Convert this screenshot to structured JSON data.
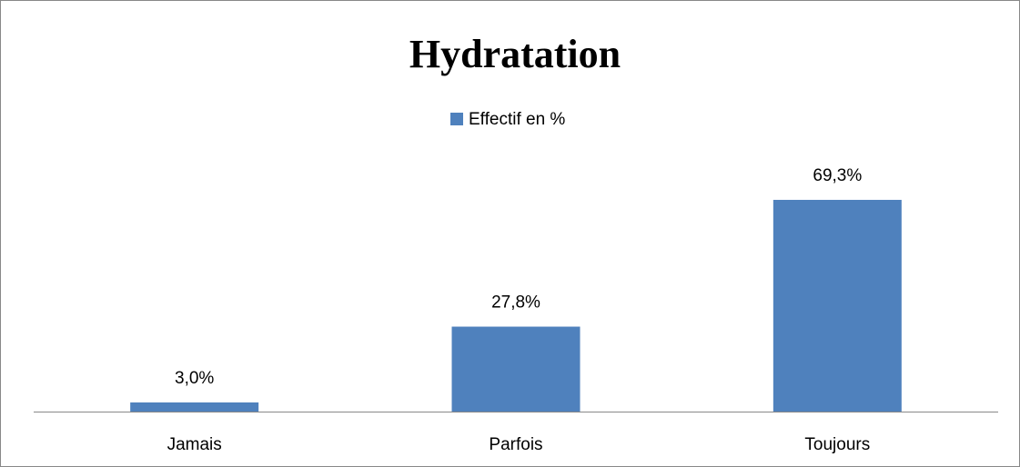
{
  "chart_data": {
    "type": "bar",
    "title": "Hydratation",
    "categories": [
      "Jamais",
      "Parfois",
      "Toujours"
    ],
    "series": [
      {
        "name": "Effectif en %",
        "color": "#4f81bd",
        "values": [
          3.0,
          27.8,
          69.3
        ],
        "value_labels": [
          "3,0%",
          "27,8%",
          "69,3%"
        ]
      }
    ],
    "ylim": [
      0,
      80
    ],
    "legend": "top",
    "grid": false
  }
}
